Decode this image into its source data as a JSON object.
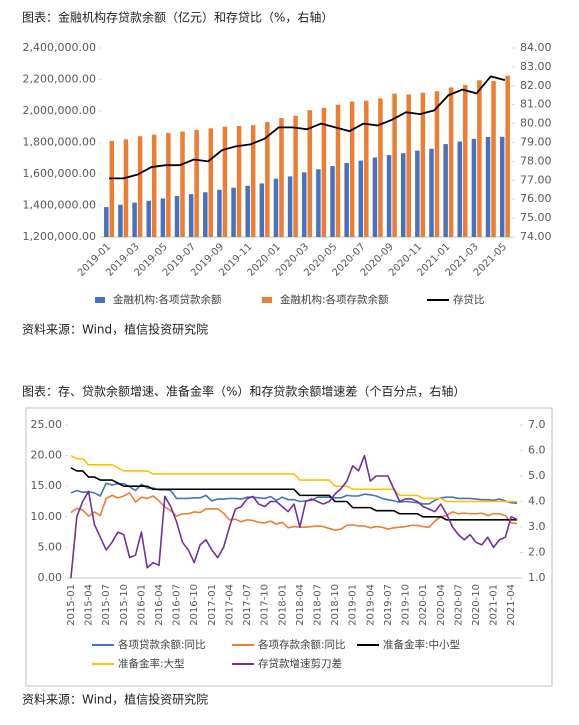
{
  "chart_data": [
    {
      "type": "bar",
      "title": "图表：金融机构存贷款余额（亿元）和存贷比（%，右轴）",
      "source": "资料来源：Wind，植信投资研究院",
      "categories": [
        "2019-01",
        null,
        "2019-03",
        null,
        "2019-05",
        null,
        "2019-07",
        null,
        "2019-09",
        null,
        "2019-11",
        null,
        "2020-01",
        null,
        "2020-03",
        null,
        "2020-05",
        null,
        "2020-07",
        null,
        "2020-09",
        null,
        "2020-11",
        null,
        "2021-01",
        null,
        "2021-03",
        null,
        "2021-05"
      ],
      "series": [
        {
          "name": "金融机构:各项贷款余额",
          "type": "bar",
          "color": "#4472c4",
          "values": [
            1390000,
            1405000,
            1418000,
            1430000,
            1445000,
            1460000,
            1472000,
            1484000,
            1500000,
            1513000,
            1525000,
            1540000,
            1570000,
            1585000,
            1610000,
            1630000,
            1650000,
            1670000,
            1685000,
            1705000,
            1720000,
            1732000,
            1748000,
            1760000,
            1790000,
            1806000,
            1823000,
            1835000,
            1836000
          ]
        },
        {
          "name": "金融机构:各项存款余额",
          "type": "bar",
          "color": "#ed7d31",
          "values": [
            1810000,
            1820000,
            1840000,
            1850000,
            1860000,
            1870000,
            1880000,
            1890000,
            1900000,
            1905000,
            1910000,
            1930000,
            1955000,
            1970000,
            2005000,
            2020000,
            2040000,
            2060000,
            2065000,
            2080000,
            2110000,
            2105000,
            2115000,
            2125000,
            2150000,
            2165000,
            2195000,
            2190000,
            2225000
          ]
        },
        {
          "name": "存贷比",
          "type": "line",
          "axis": "y2",
          "color": "#000000",
          "values": [
            77.1,
            77.1,
            77.3,
            77.7,
            77.8,
            77.8,
            78.1,
            78.0,
            78.6,
            78.8,
            78.9,
            79.2,
            79.8,
            79.8,
            79.7,
            80.0,
            79.8,
            79.6,
            80.0,
            79.9,
            80.2,
            80.6,
            80.5,
            80.7,
            81.5,
            81.8,
            81.6,
            82.5,
            82.3
          ]
        }
      ],
      "ylim": [
        1200000,
        2400000
      ],
      "yticks": [
        {
          "value": 1200000,
          "label": "1,200,000.00"
        },
        {
          "value": 1400000,
          "label": "1,400,000.00"
        },
        {
          "value": 1600000,
          "label": "1,600,000.00"
        },
        {
          "value": 1800000,
          "label": "1,800,000.00"
        },
        {
          "value": 2000000,
          "label": "2,000,000.00"
        },
        {
          "value": 2200000,
          "label": "2,200,000.00"
        },
        {
          "value": 2400000,
          "label": "2,400,000.00"
        }
      ],
      "y2lim": [
        74,
        84
      ],
      "y2ticks": [
        {
          "value": 74,
          "label": "74.00"
        },
        {
          "value": 75,
          "label": "75.00"
        },
        {
          "value": 76,
          "label": "76.00"
        },
        {
          "value": 77,
          "label": "77.00"
        },
        {
          "value": 78,
          "label": "78.00"
        },
        {
          "value": 79,
          "label": "79.00"
        },
        {
          "value": 80,
          "label": "80.00"
        },
        {
          "value": 81,
          "label": "81.00"
        },
        {
          "value": 82,
          "label": "82.00"
        },
        {
          "value": 83,
          "label": "83.00"
        },
        {
          "value": 84,
          "label": "84.00"
        }
      ],
      "grid": false,
      "legend": "bottom"
    },
    {
      "type": "line",
      "title": "图表：存、贷款余额增速、准备金率（%）和存贷款余额增速差（个百分点，右轴）",
      "source": "资料来源：Wind，植信投资研究院",
      "categories": [
        "2015-01",
        null,
        null,
        "2015-04",
        null,
        null,
        "2015-07",
        null,
        null,
        "2015-10",
        null,
        null,
        "2016-01",
        null,
        null,
        "2016-04",
        null,
        null,
        "2016-07",
        null,
        null,
        "2016-10",
        null,
        null,
        "2017-01",
        null,
        null,
        "2017-04",
        null,
        null,
        "2017-07",
        null,
        null,
        "2017-10",
        null,
        null,
        "2018-01",
        null,
        null,
        "2018-04",
        null,
        null,
        "2018-07",
        null,
        null,
        "2018-10",
        null,
        null,
        "2019-01",
        null,
        null,
        "2019-04",
        null,
        null,
        "2019-07",
        null,
        null,
        "2019-10",
        null,
        null,
        "2020-01",
        null,
        null,
        "2020-04",
        null,
        null,
        "2020-07",
        null,
        null,
        "2020-10",
        null,
        null,
        "2021-01",
        null,
        null,
        "2021-04",
        null
      ],
      "series": [
        {
          "name": "各项贷款余额:同比",
          "color": "#4472c4",
          "values": [
            13.9,
            14.3,
            14.0,
            14.1,
            13.9,
            13.4,
            15.5,
            15.2,
            15.4,
            15.4,
            14.9,
            14.3,
            15.3,
            14.7,
            14.7,
            14.4,
            14.4,
            14.3,
            13.0,
            13.0,
            13.0,
            13.1,
            13.1,
            13.5,
            12.6,
            12.9,
            12.9,
            13.0,
            13.0,
            12.9,
            13.2,
            13.2,
            13.1,
            13.0,
            13.3,
            12.7,
            13.2,
            12.8,
            12.8,
            12.5,
            12.6,
            12.7,
            13.2,
            13.2,
            13.2,
            13.1,
            13.1,
            13.5,
            13.4,
            13.4,
            13.7,
            13.6,
            13.4,
            13.0,
            12.8,
            12.6,
            12.4,
            12.5,
            12.4,
            12.3,
            12.1,
            12.1,
            12.7,
            13.1,
            13.2,
            13.2,
            13.0,
            13.0,
            13.0,
            12.9,
            12.8,
            12.8,
            12.7,
            12.9,
            12.6,
            12.3,
            12.2
          ]
        },
        {
          "name": "各项存款余额:同比",
          "color": "#ed7d31",
          "values": [
            10.7,
            11.4,
            11.1,
            10.1,
            10.8,
            10.2,
            13.0,
            13.5,
            13.1,
            13.4,
            13.9,
            12.4,
            13.2,
            13.0,
            13.4,
            12.6,
            11.6,
            11.0,
            10.1,
            10.5,
            10.5,
            10.8,
            10.7,
            11.3,
            11.3,
            11.3,
            10.6,
            9.5,
            9.6,
            9.2,
            9.5,
            9.4,
            9.1,
            9.0,
            9.3,
            8.8,
            9.1,
            8.2,
            8.4,
            8.3,
            8.3,
            8.4,
            8.5,
            8.4,
            8.1,
            7.8,
            8.0,
            8.6,
            8.7,
            8.5,
            8.5,
            8.2,
            8.4,
            8.3,
            8.0,
            8.2,
            8.3,
            8.4,
            8.6,
            8.6,
            8.4,
            8.3,
            9.3,
            10.0,
            10.2,
            10.8,
            10.5,
            10.6,
            10.5,
            10.5,
            10.6,
            10.2,
            10.5,
            10.5,
            10.2,
            9.0,
            8.9
          ]
        },
        {
          "name": "准备金率:中小型",
          "color": "#000000",
          "values": [
            18.0,
            17.5,
            17.5,
            16.5,
            16.5,
            16.0,
            16.0,
            16.0,
            15.5,
            15.0,
            15.0,
            15.0,
            15.0,
            15.0,
            14.5,
            14.5,
            14.5,
            14.5,
            14.5,
            14.5,
            14.5,
            14.5,
            14.5,
            14.5,
            14.5,
            14.5,
            14.5,
            14.5,
            14.5,
            14.5,
            14.5,
            14.5,
            14.5,
            14.5,
            14.5,
            14.5,
            14.5,
            14.5,
            14.5,
            13.5,
            13.5,
            13.5,
            13.5,
            13.5,
            13.5,
            12.5,
            12.5,
            12.5,
            11.5,
            11.5,
            11.5,
            11.5,
            11.0,
            11.0,
            11.0,
            11.0,
            10.5,
            10.5,
            10.5,
            10.5,
            10.0,
            10.0,
            10.0,
            10.0,
            9.5,
            9.5,
            9.5,
            9.5,
            9.5,
            9.5,
            9.5,
            9.5,
            9.5,
            9.5,
            9.5,
            9.5,
            9.5
          ]
        },
        {
          "name": "准备金率:大型",
          "color": "#ffc000",
          "values": [
            20.0,
            19.5,
            19.5,
            18.5,
            18.5,
            18.5,
            18.5,
            18.5,
            18.0,
            17.5,
            17.5,
            17.5,
            17.5,
            17.5,
            17.0,
            17.0,
            17.0,
            17.0,
            17.0,
            17.0,
            17.0,
            17.0,
            17.0,
            17.0,
            17.0,
            17.0,
            17.0,
            17.0,
            17.0,
            17.0,
            17.0,
            17.0,
            17.0,
            17.0,
            17.0,
            17.0,
            17.0,
            17.0,
            17.0,
            16.0,
            16.0,
            16.0,
            16.0,
            16.0,
            16.0,
            15.0,
            15.0,
            15.0,
            14.5,
            14.5,
            14.5,
            14.5,
            14.5,
            14.5,
            14.5,
            14.5,
            13.5,
            13.5,
            13.5,
            13.5,
            13.0,
            13.0,
            13.0,
            13.0,
            12.5,
            12.5,
            12.5,
            12.5,
            12.5,
            12.5,
            12.5,
            12.5,
            12.5,
            12.5,
            12.5,
            12.5,
            12.5
          ]
        },
        {
          "name": "存贷款增速剪刀差",
          "axis": "y2",
          "color": "#7030a0",
          "values": [
            1.0,
            3.4,
            4.0,
            4.4,
            3.1,
            2.6,
            2.1,
            2.4,
            2.8,
            2.7,
            1.8,
            1.9,
            2.8,
            1.4,
            1.6,
            1.5,
            4.2,
            3.8,
            3.2,
            2.4,
            2.1,
            1.6,
            2.3,
            2.5,
            2.1,
            1.8,
            2.2,
            3.0,
            3.7,
            3.8,
            4.1,
            4.2,
            3.9,
            3.8,
            4.0,
            4.0,
            3.8,
            3.6,
            3.9,
            3.0,
            4.0,
            4.1,
            4.0,
            3.9,
            4.0,
            4.3,
            4.5,
            4.8,
            5.4,
            5.2,
            5.8,
            4.8,
            5.0,
            5.0,
            5.0,
            4.5,
            4.0,
            4.1,
            4.1,
            4.0,
            3.8,
            3.7,
            3.6,
            3.9,
            3.5,
            3.0,
            2.7,
            2.5,
            2.7,
            2.4,
            2.3,
            2.6,
            2.2,
            2.5,
            2.6,
            3.4,
            3.3
          ]
        }
      ],
      "ylim": [
        0,
        25
      ],
      "yticks": [
        {
          "value": 0,
          "label": "0.00"
        },
        {
          "value": 5,
          "label": "5.00"
        },
        {
          "value": 10,
          "label": "10.00"
        },
        {
          "value": 15,
          "label": "15.00"
        },
        {
          "value": 20,
          "label": "20.00"
        },
        {
          "value": 25,
          "label": "25.00"
        }
      ],
      "y2lim": [
        1,
        7
      ],
      "y2ticks": [
        {
          "value": 1,
          "label": "1.0"
        },
        {
          "value": 2,
          "label": "2.0"
        },
        {
          "value": 3,
          "label": "3.0"
        },
        {
          "value": 4,
          "label": "4.0"
        },
        {
          "value": 5,
          "label": "5.0"
        },
        {
          "value": 6,
          "label": "6.0"
        },
        {
          "value": 7,
          "label": "7.0"
        }
      ],
      "grid": false,
      "legend": "bottom"
    }
  ]
}
